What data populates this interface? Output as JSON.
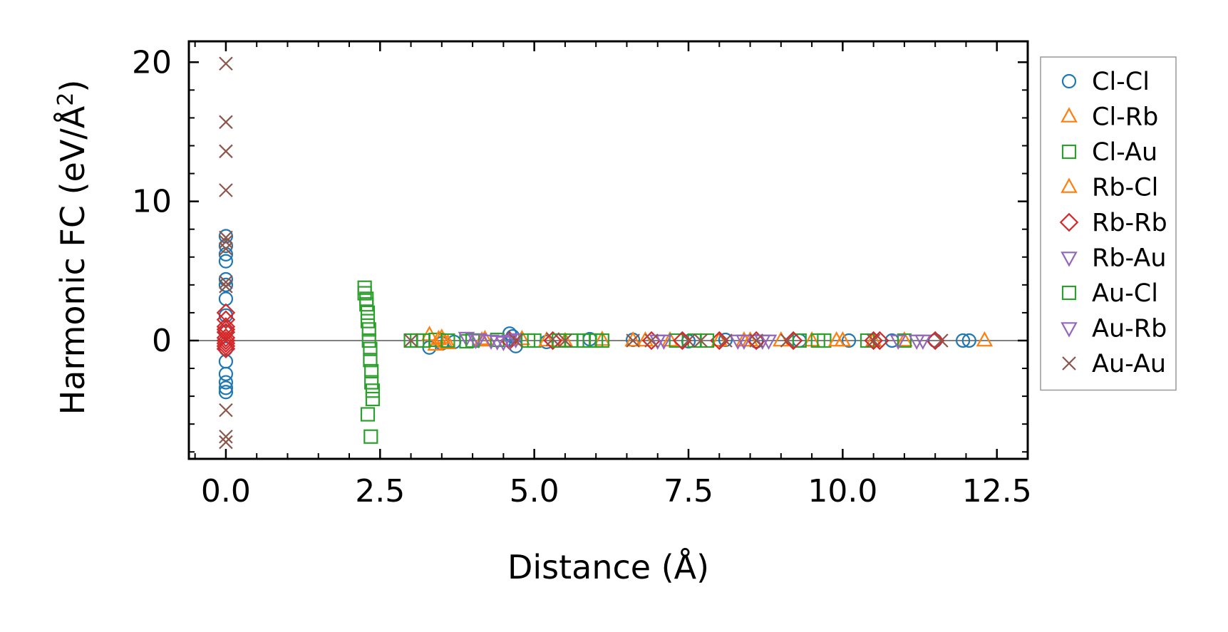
{
  "chart_data": {
    "type": "scatter",
    "title": "",
    "xlabel": "Distance (Å)",
    "ylabel_prefix": "Harmonic FC (eV/Å",
    "ylabel_sup": "2",
    "ylabel_suffix": ")",
    "xlim": [
      -0.6,
      13.0
    ],
    "ylim": [
      -8.5,
      21.5
    ],
    "xticks": [
      0.0,
      2.5,
      5.0,
      7.5,
      10.0,
      12.5
    ],
    "xtick_labels": [
      "0.0",
      "2.5",
      "5.0",
      "7.5",
      "10.0",
      "12.5"
    ],
    "yticks": [
      0,
      10,
      20
    ],
    "ytick_labels": [
      "0",
      "10",
      "20"
    ],
    "grid": false,
    "hline": 0,
    "legend_position": "outside-right",
    "series": [
      {
        "name": "Cl-Cl",
        "marker": "circle",
        "color": "#1f77b4",
        "x": [
          0,
          0,
          0,
          0,
          0,
          0,
          0,
          0,
          0,
          0,
          0,
          0,
          0,
          0,
          0,
          3.3,
          3.5,
          3.7,
          4.6,
          4.65,
          4.7,
          5.2,
          5.9,
          6.6,
          7.5,
          8.1,
          8.6,
          9.3,
          10.1,
          10.8,
          11.5,
          11.95,
          12.05
        ],
        "y": [
          7.5,
          6.8,
          6.2,
          5.7,
          4.4,
          4.0,
          3.0,
          1.8,
          0.6,
          -0.6,
          -1.5,
          -2.4,
          -3.0,
          -3.4,
          -3.7,
          -0.5,
          -0.2,
          -0.1,
          0.5,
          0.3,
          -0.4,
          -0.1,
          0.1,
          0.05,
          -0.05,
          0.05,
          -0.05,
          0.0,
          0.0,
          0.0,
          0.0,
          0.0,
          0.0
        ]
      },
      {
        "name": "Cl-Rb",
        "marker": "triangle-up",
        "color": "#ff7f0e",
        "x": [
          3.3,
          3.4,
          3.5,
          3.6,
          4.2,
          4.8,
          5.5,
          6.1,
          6.6,
          7.2,
          8.0,
          8.4,
          9.0,
          9.5,
          10.0,
          10.5,
          11.0,
          12.3
        ],
        "y": [
          0.4,
          -0.3,
          0.2,
          -0.2,
          0.1,
          0.1,
          -0.05,
          0.05,
          0.0,
          0.0,
          0.0,
          0.0,
          0.0,
          0.0,
          0.0,
          0.0,
          0.0,
          0.0
        ]
      },
      {
        "name": "Cl-Au",
        "marker": "square",
        "color": "#2ca02c",
        "x": [
          2.25,
          2.25,
          2.28,
          2.28,
          2.3,
          2.3,
          2.32,
          2.32,
          2.34,
          2.34,
          2.36,
          2.36,
          2.38,
          2.38,
          2.3,
          2.35,
          3.1,
          3.4,
          3.9,
          4.4,
          5.0,
          5.6,
          5.9,
          6.1,
          7.3,
          7.6,
          9.3,
          9.7,
          10.4,
          11.0
        ],
        "y": [
          3.8,
          3.4,
          3.0,
          2.6,
          2.0,
          1.4,
          0.8,
          0.0,
          -0.6,
          -1.4,
          -2.2,
          -3.0,
          -3.6,
          -4.2,
          -5.3,
          -6.9,
          0.0,
          0.05,
          -0.05,
          0.05,
          0.0,
          0.0,
          0.0,
          0.0,
          0.0,
          0.0,
          0.0,
          0.0,
          0.0,
          0.0
        ]
      },
      {
        "name": "Rb-Cl",
        "marker": "triangle-up",
        "color": "#ff7f0e",
        "x": [
          3.45,
          3.55,
          4.15,
          5.2,
          6.8,
          8.5,
          9.9
        ],
        "y": [
          0.1,
          -0.1,
          0.0,
          0.0,
          0.0,
          0.0,
          0.0
        ]
      },
      {
        "name": "Rb-Rb",
        "marker": "diamond",
        "color": "#d62728",
        "x": [
          0,
          0,
          0,
          0,
          0,
          0,
          0,
          0,
          0,
          0,
          4.6,
          5.3,
          6.9,
          7.4,
          8.0,
          8.6,
          9.2,
          10.5,
          10.6,
          11.5
        ],
        "y": [
          2.0,
          1.5,
          1.0,
          0.6,
          0.2,
          0.0,
          -0.2,
          -0.4,
          -0.6,
          0.8,
          0.0,
          0.0,
          0.0,
          0.0,
          0.0,
          0.0,
          0.0,
          0.0,
          0.0,
          0.0
        ]
      },
      {
        "name": "Rb-Au",
        "marker": "triangle-down",
        "color": "#9467bd",
        "x": [
          3.9,
          4.1,
          4.3,
          4.5,
          4.7,
          7.1,
          8.4,
          8.8,
          10.9,
          11.3
        ],
        "y": [
          0.2,
          0.1,
          0.0,
          -0.1,
          0.1,
          0.0,
          0.0,
          0.0,
          0.0,
          0.0
        ]
      },
      {
        "name": "Au-Cl",
        "marker": "square",
        "color": "#2ca02c",
        "x": [
          3.0,
          3.2,
          3.6,
          4.0,
          4.9,
          5.4,
          5.8,
          6.0,
          7.8,
          9.6
        ],
        "y": [
          0.0,
          0.0,
          0.0,
          0.0,
          0.0,
          0.0,
          0.0,
          0.0,
          0.0,
          0.0
        ]
      },
      {
        "name": "Au-Rb",
        "marker": "triangle-down",
        "color": "#9467bd",
        "x": [
          4.05,
          4.4,
          4.6,
          7.0,
          8.3,
          8.7,
          11.2
        ],
        "y": [
          0.05,
          -0.05,
          0.0,
          0.0,
          0.0,
          0.0,
          0.0
        ]
      },
      {
        "name": "Au-Au",
        "marker": "x",
        "color": "#8c564b",
        "x": [
          0,
          0,
          0,
          0,
          0,
          0,
          0,
          0,
          0,
          0,
          0,
          0,
          3.0,
          4.7,
          5.3,
          5.5,
          6.6,
          6.9,
          7.5,
          7.7,
          8.1,
          8.6,
          9.1,
          10.5,
          11.6
        ],
        "y": [
          19.9,
          15.7,
          13.6,
          10.8,
          7.4,
          7.1,
          6.6,
          4.2,
          3.9,
          -5.0,
          -6.9,
          -7.3,
          0.0,
          0.0,
          0.1,
          0.0,
          0.0,
          0.0,
          0.0,
          0.0,
          0.0,
          0.0,
          0.0,
          0.0,
          0.0
        ]
      }
    ]
  }
}
